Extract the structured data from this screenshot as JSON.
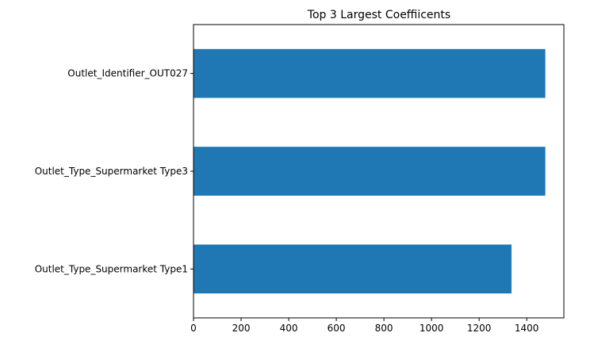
{
  "chart_data": {
    "type": "bar",
    "orientation": "horizontal",
    "title": "Top 3 Largest Coeffiicents",
    "xlabel": "",
    "ylabel": "",
    "categories": [
      "Outlet_Identifier_OUT027",
      "Outlet_Type_Supermarket Type3",
      "Outlet_Type_Supermarket Type1"
    ],
    "values": [
      1478,
      1478,
      1336
    ],
    "xlim": [
      0,
      1556
    ],
    "xticks": [
      0,
      200,
      400,
      600,
      800,
      1000,
      1200,
      1400
    ],
    "xtick_labels": [
      "0",
      "200",
      "400",
      "600",
      "800",
      "1000",
      "1200",
      "1400"
    ],
    "bar_color": "#1f77b4",
    "grid": false,
    "legend": false
  }
}
